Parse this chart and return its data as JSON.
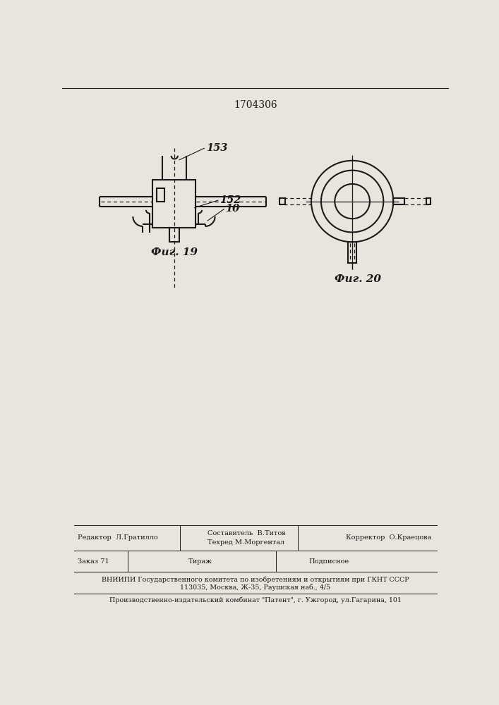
{
  "title_number": "1704306",
  "fig19_label": "Фиг. 19",
  "fig20_label": "Фиг. 20",
  "label_153": "153",
  "label_152": "152",
  "label_10": "10",
  "bg_color": "#e8e5df",
  "line_color": "#1a1a1a",
  "footer_row1": [
    "Редактор  Л.Гратилло",
    "Составитель  В.Титов",
    "Техред М.Моргентал",
    "Корректор  О.Краецова"
  ],
  "footer_row2": [
    "Заказ 71",
    "Тираж",
    "Подписное"
  ],
  "footer_vniip": "ВНИИПИ Государственного комитета по изобретениям и открытиям при ГКНТ СССР",
  "footer_addr": "113035, Москва, Ж-35, Раушская наб., 4/5",
  "footer_pub": "Производственно-издательский комбинат \"Патент\", г. Ужгород, ул.Гагарина, 101"
}
